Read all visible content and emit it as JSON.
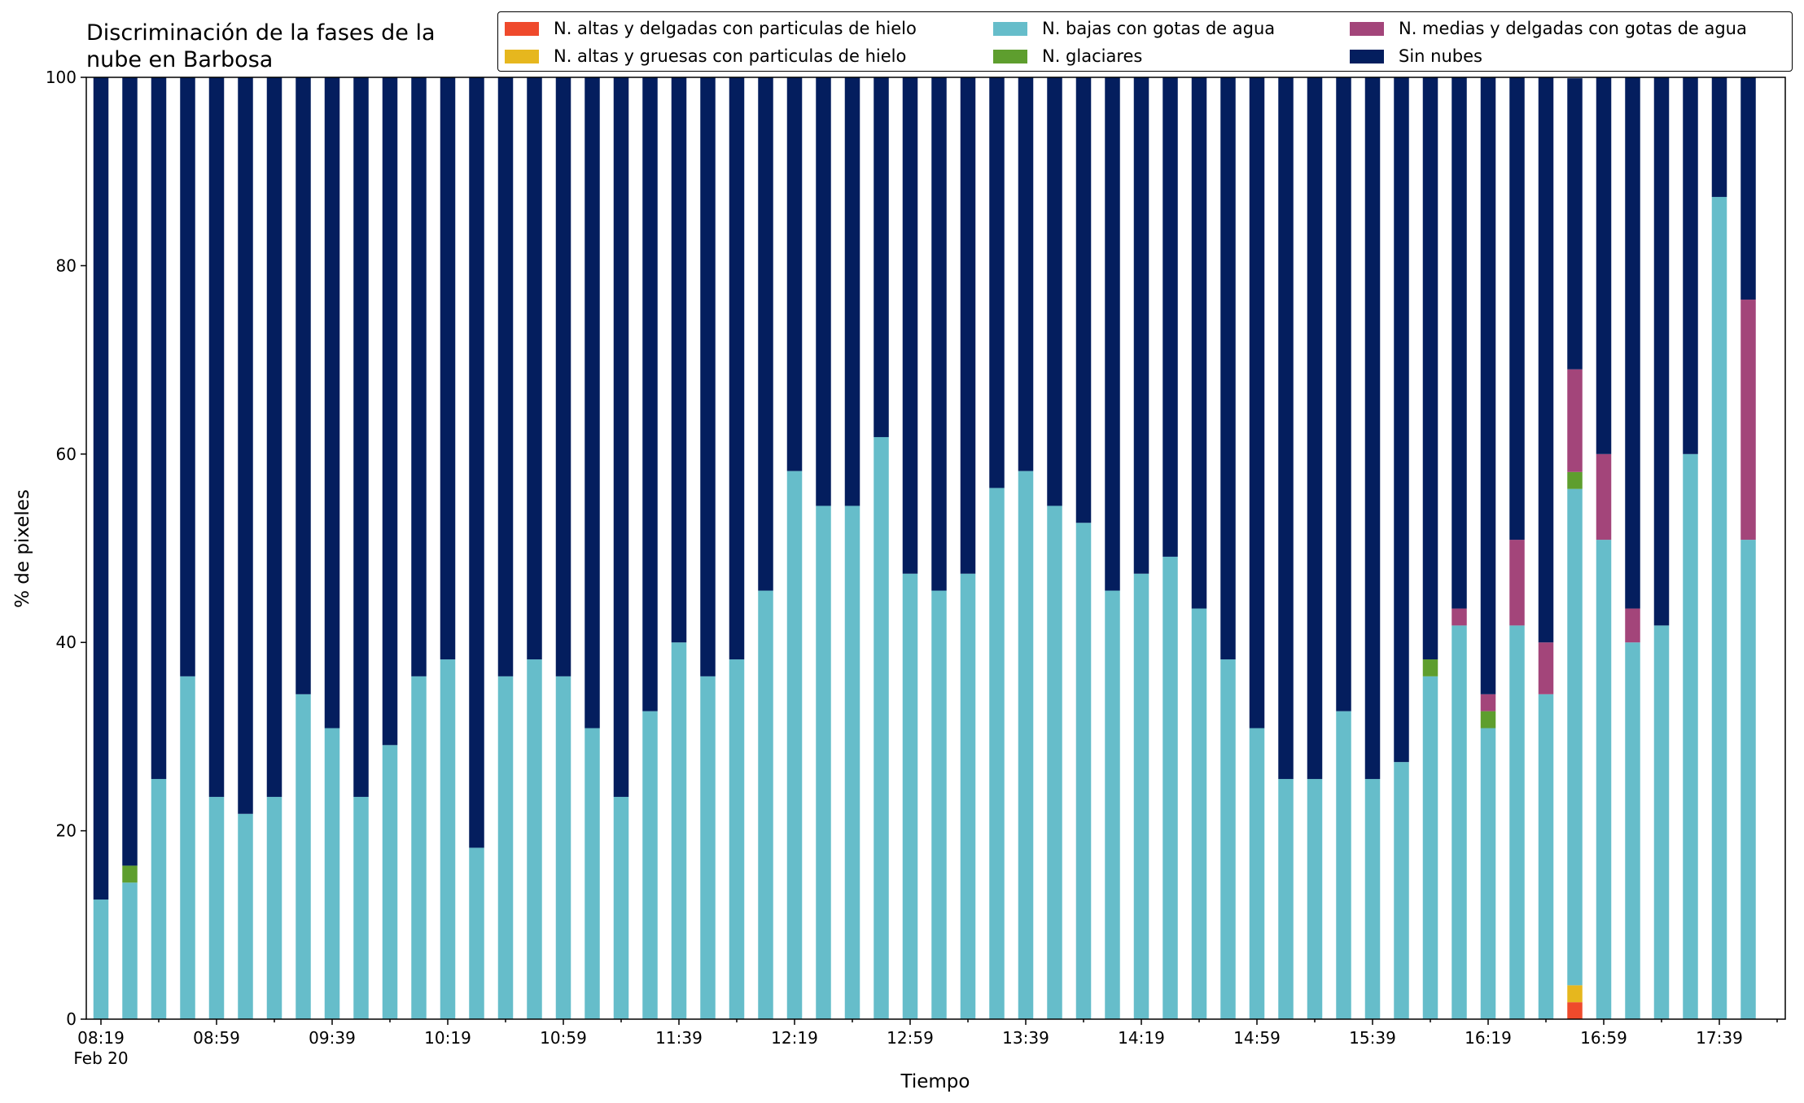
{
  "chart_data": {
    "type": "bar",
    "stacked": true,
    "title": "Discriminación de la fases de la\nnube en Barbosa",
    "xlabel": "Tiempo",
    "ylabel": "% de pixeles",
    "ylim": [
      0,
      100
    ],
    "yticks": [
      0,
      20,
      40,
      60,
      80,
      100
    ],
    "grid": false,
    "legend_position": "top-right",
    "x_tick_labels": [
      {
        "index": 0,
        "label": "08:19",
        "sub": "Feb 20"
      },
      {
        "index": 4,
        "label": "08:59"
      },
      {
        "index": 8,
        "label": "09:39"
      },
      {
        "index": 12,
        "label": "10:19"
      },
      {
        "index": 16,
        "label": "10:59"
      },
      {
        "index": 20,
        "label": "11:39"
      },
      {
        "index": 24,
        "label": "12:19"
      },
      {
        "index": 28,
        "label": "12:59"
      },
      {
        "index": 32,
        "label": "13:39"
      },
      {
        "index": 36,
        "label": "14:19"
      },
      {
        "index": 40,
        "label": "14:59"
      },
      {
        "index": 44,
        "label": "15:39"
      },
      {
        "index": 48,
        "label": "16:19"
      },
      {
        "index": 52,
        "label": "16:59"
      },
      {
        "index": 56,
        "label": "17:39"
      }
    ],
    "series": [
      {
        "name": "N. altas y delgadas con particulas de hielo",
        "color": "#ef4a2c",
        "values": [
          0,
          0,
          0,
          0,
          0,
          0,
          0,
          0,
          0,
          0,
          0,
          0,
          0,
          0,
          0,
          0,
          0,
          0,
          0,
          0,
          0,
          0,
          0,
          0,
          0,
          0,
          0,
          0,
          0,
          0,
          0,
          0,
          0,
          0,
          0,
          0,
          0,
          0,
          0,
          0,
          0,
          0,
          0,
          0,
          0,
          0,
          0,
          0,
          0,
          0,
          0,
          1.8,
          0,
          0,
          0,
          0,
          0,
          0
        ]
      },
      {
        "name": "N. altas y gruesas con particulas de hielo",
        "color": "#e6b71e",
        "values": [
          0,
          0,
          0,
          0,
          0,
          0,
          0,
          0,
          0,
          0,
          0,
          0,
          0,
          0,
          0,
          0,
          0,
          0,
          0,
          0,
          0,
          0,
          0,
          0,
          0,
          0,
          0,
          0,
          0,
          0,
          0,
          0,
          0,
          0,
          0,
          0,
          0,
          0,
          0,
          0,
          0,
          0,
          0,
          0,
          0,
          0,
          0,
          0,
          0,
          0,
          0,
          1.8,
          0,
          0,
          0,
          0,
          0,
          0
        ]
      },
      {
        "name": "N. bajas con gotas de agua",
        "color": "#66bdca",
        "values": [
          12.7,
          14.5,
          25.5,
          36.4,
          23.6,
          21.8,
          23.6,
          34.5,
          30.9,
          23.6,
          29.1,
          36.4,
          38.2,
          18.2,
          36.4,
          38.2,
          36.4,
          30.9,
          23.6,
          32.7,
          40.0,
          36.4,
          38.2,
          45.5,
          58.2,
          54.5,
          54.5,
          61.8,
          47.3,
          45.5,
          47.3,
          56.4,
          58.2,
          54.5,
          52.7,
          45.5,
          47.3,
          49.1,
          43.6,
          38.2,
          30.9,
          25.5,
          25.5,
          32.7,
          25.5,
          27.3,
          36.4,
          41.8,
          30.9,
          41.8,
          34.5,
          52.7,
          50.9,
          40.0,
          41.8,
          60.0,
          87.3,
          50.9
        ]
      },
      {
        "name": "N. glaciares",
        "color": "#5e9e2e",
        "values": [
          0,
          1.8,
          0,
          0,
          0,
          0,
          0,
          0,
          0,
          0,
          0,
          0,
          0,
          0,
          0,
          0,
          0,
          0,
          0,
          0,
          0,
          0,
          0,
          0,
          0,
          0,
          0,
          0,
          0,
          0,
          0,
          0,
          0,
          0,
          0,
          0,
          0,
          0,
          0,
          0,
          0,
          0,
          0,
          0,
          0,
          0,
          1.8,
          0,
          1.8,
          0,
          0,
          1.8,
          0,
          0,
          0,
          0,
          0,
          0
        ]
      },
      {
        "name": "N. medias y delgadas con gotas de agua",
        "color": "#a3457a",
        "values": [
          0,
          0,
          0,
          0,
          0,
          0,
          0,
          0,
          0,
          0,
          0,
          0,
          0,
          0,
          0,
          0,
          0,
          0,
          0,
          0,
          0,
          0,
          0,
          0,
          0,
          0,
          0,
          0,
          0,
          0,
          0,
          0,
          0,
          0,
          0,
          0,
          0,
          0,
          0,
          0,
          0,
          0,
          0,
          0,
          0,
          0,
          0,
          1.8,
          1.8,
          9.1,
          5.5,
          10.9,
          9.1,
          3.6,
          0,
          0,
          0,
          25.5
        ]
      },
      {
        "name": "Sin nubes",
        "color": "#041e5e",
        "values": [
          87.3,
          83.7,
          74.5,
          63.6,
          76.4,
          78.2,
          76.4,
          65.5,
          69.1,
          76.4,
          70.9,
          63.6,
          61.8,
          81.8,
          63.6,
          61.8,
          63.6,
          69.1,
          76.4,
          67.3,
          60.0,
          63.6,
          61.8,
          54.5,
          41.8,
          45.5,
          45.5,
          38.2,
          52.7,
          54.5,
          52.7,
          43.6,
          41.8,
          45.5,
          47.3,
          54.5,
          52.7,
          50.9,
          56.4,
          61.8,
          69.1,
          74.5,
          74.5,
          67.3,
          74.5,
          72.7,
          61.8,
          56.4,
          65.5,
          49.1,
          60.0,
          30.9,
          40.0,
          56.4,
          58.2,
          40.0,
          12.7,
          23.6
        ]
      }
    ]
  }
}
